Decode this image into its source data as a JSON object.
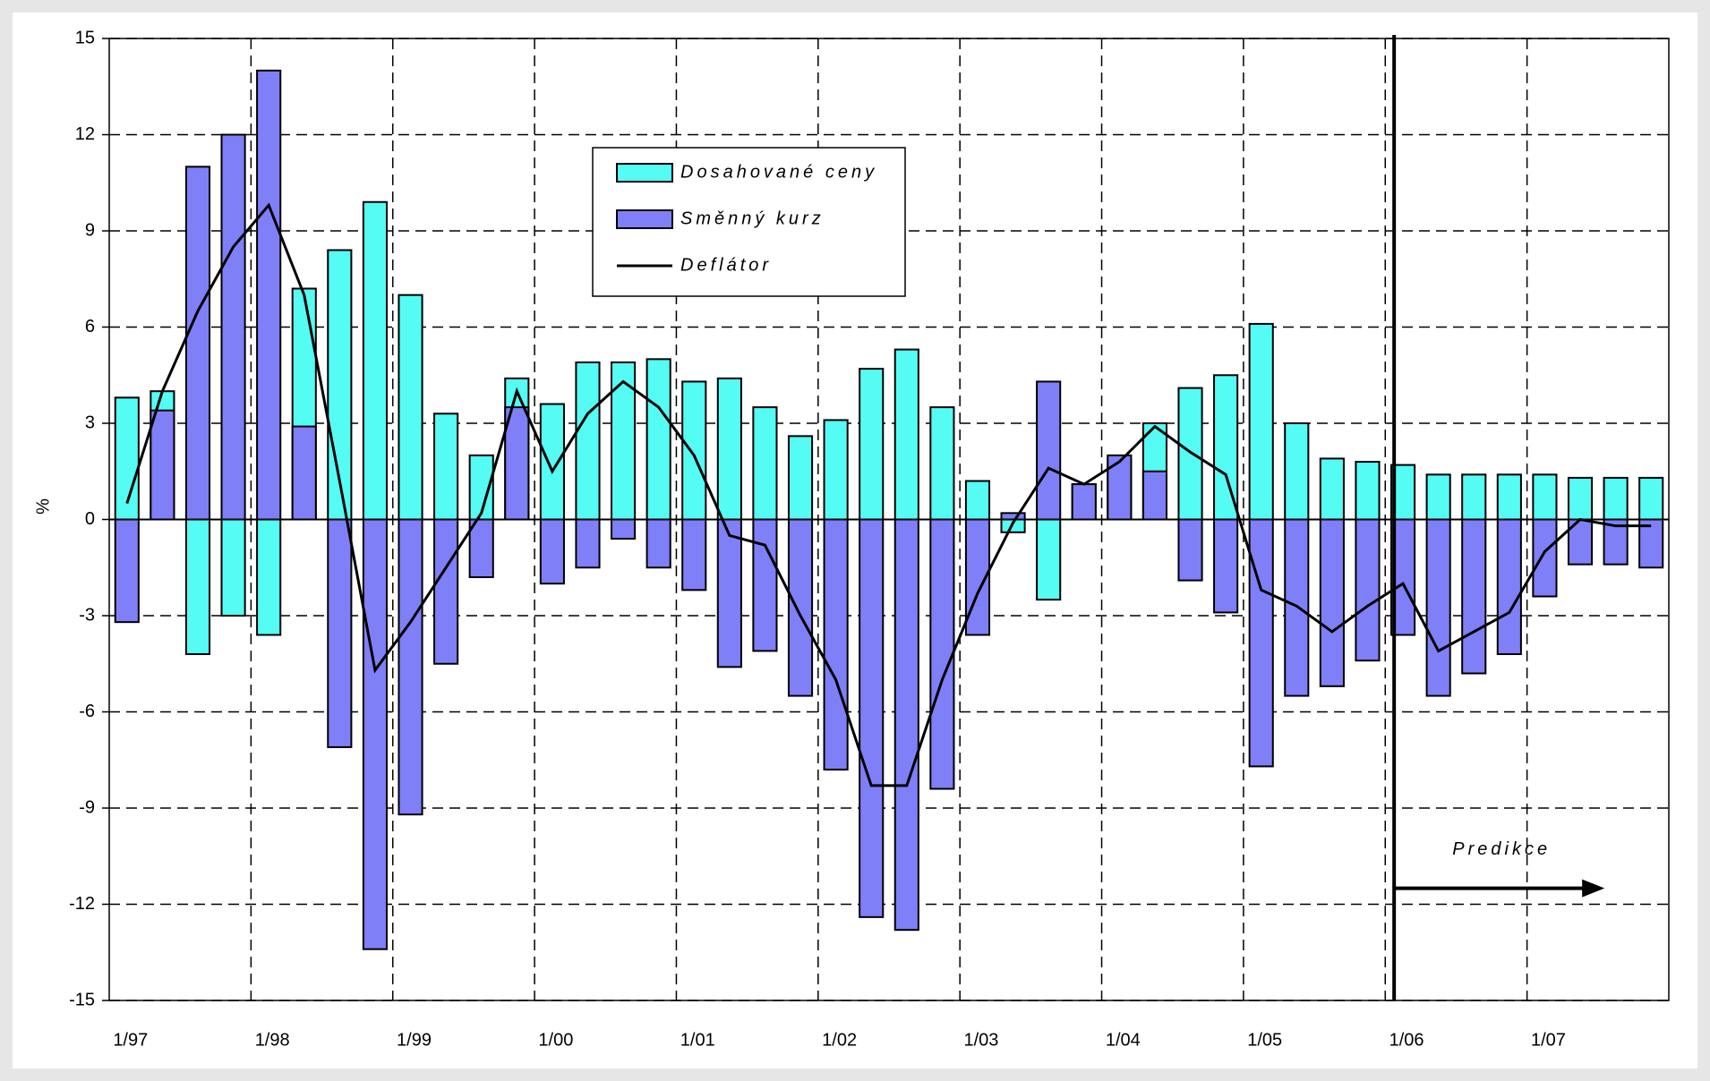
{
  "chart_data": {
    "type": "bar",
    "y_label": "%",
    "categories": [
      "1/97",
      null,
      null,
      null,
      "1/98",
      null,
      null,
      null,
      "1/99",
      null,
      null,
      null,
      "1/00",
      null,
      null,
      null,
      "1/01",
      null,
      null,
      null,
      "1/02",
      null,
      null,
      null,
      "1/03",
      null,
      null,
      null,
      "1/04",
      null,
      null,
      null,
      "1/05",
      null,
      null,
      null,
      "1/06",
      null,
      null,
      null,
      "1/07",
      null,
      null,
      null
    ],
    "series": [
      {
        "name": "Dosahované ceny",
        "type": "bar",
        "color": "#55fcf4",
        "values": [
          3.8,
          4.0,
          -4.2,
          -3.0,
          -3.6,
          7.2,
          8.4,
          9.9,
          7.0,
          3.3,
          2.0,
          4.4,
          3.6,
          4.9,
          4.9,
          5.0,
          4.3,
          4.4,
          3.5,
          2.6,
          3.1,
          4.7,
          5.3,
          3.5,
          1.2,
          -0.4,
          -2.5,
          1.1,
          1.9,
          3.0,
          4.1,
          4.5,
          6.1,
          3.0,
          1.9,
          1.8,
          1.7,
          1.4,
          1.4,
          1.4,
          1.4,
          1.3,
          1.3,
          1.3
        ]
      },
      {
        "name": "Směnný kurz",
        "type": "bar",
        "color": "#7f7ff7",
        "values": [
          -3.2,
          3.4,
          11.0,
          12.0,
          14.0,
          2.9,
          -7.1,
          -13.4,
          -9.2,
          -4.5,
          -1.8,
          3.5,
          -2.0,
          -1.5,
          -0.6,
          -1.5,
          -2.2,
          -4.6,
          -4.1,
          -5.5,
          -7.8,
          -12.4,
          -12.8,
          -8.4,
          -3.6,
          0.2,
          4.3,
          1.1,
          2.0,
          1.5,
          -1.9,
          -2.9,
          -7.7,
          -5.5,
          -5.2,
          -4.4,
          -3.6,
          -5.5,
          -4.8,
          -4.2,
          -2.4,
          -1.4,
          -1.4,
          -1.5
        ]
      },
      {
        "name": "Deflátor",
        "type": "line",
        "color": "#000000",
        "values": [
          0.5,
          4.0,
          6.5,
          8.5,
          9.8,
          7.0,
          1.2,
          -4.7,
          -3.2,
          -1.5,
          0.2,
          4.0,
          1.5,
          3.3,
          4.3,
          3.5,
          2.0,
          -0.5,
          -0.8,
          -3.0,
          -5.0,
          -8.3,
          -8.3,
          -5.0,
          -2.3,
          -0.1,
          1.6,
          1.1,
          1.8,
          2.9,
          2.1,
          1.4,
          -2.2,
          -2.7,
          -3.5,
          -2.7,
          -2.0,
          -4.1,
          -3.5,
          -2.9,
          -1.0,
          0.0,
          -0.2,
          -0.2
        ]
      }
    ],
    "annotation": "Predikce",
    "ylim": [
      -15,
      15
    ],
    "yticks": [
      -15,
      -12,
      -9,
      -6,
      -3,
      0,
      3,
      6,
      9,
      12,
      15
    ],
    "grid": true
  }
}
